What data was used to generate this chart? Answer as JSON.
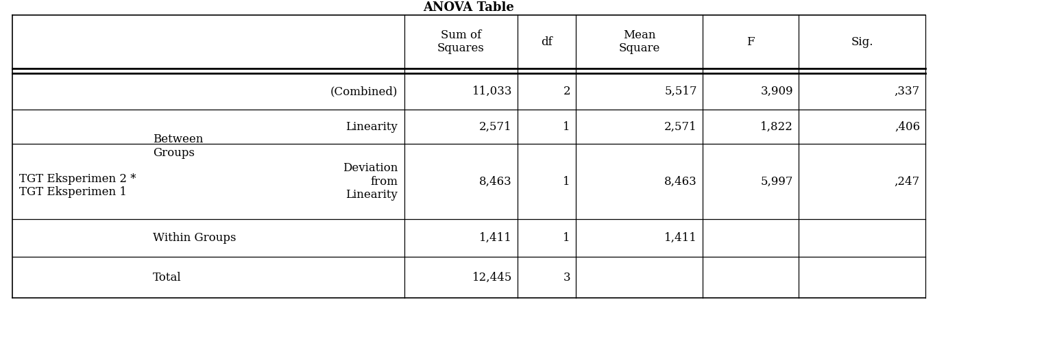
{
  "title": "ANOVA Table",
  "font_family": "DejaVu Serif",
  "font_size": 12,
  "bg_color": "#ffffff",
  "text_color": "#000000",
  "line_color": "#000000",
  "col_headers": [
    "Sum of\nSquares",
    "df",
    "Mean\nSquare",
    "F",
    "Sig."
  ],
  "data_rows": [
    [
      "11,033",
      "2",
      "5,517",
      "3,909",
      ",337"
    ],
    [
      "2,571",
      "1",
      "2,571",
      "1,822",
      ",406"
    ],
    [
      "8,463",
      "1",
      "8,463",
      "5,997",
      ",247"
    ],
    [
      "1,411",
      "1",
      "1,411",
      "",
      ""
    ],
    [
      "12,445",
      "3",
      "",
      "",
      ""
    ]
  ],
  "sub_labels": [
    "(Combined)",
    "Linearity",
    "Deviation\nfrom\nLinearity",
    "",
    ""
  ],
  "col2_labels": [
    "Between\nGroups",
    "",
    "",
    "Within Groups",
    "Total"
  ],
  "col1_label": "TGT Eksperimen 2 *\nTGT Eksperimen 1",
  "figw": 15.23,
  "figh": 4.98,
  "dpi": 100
}
